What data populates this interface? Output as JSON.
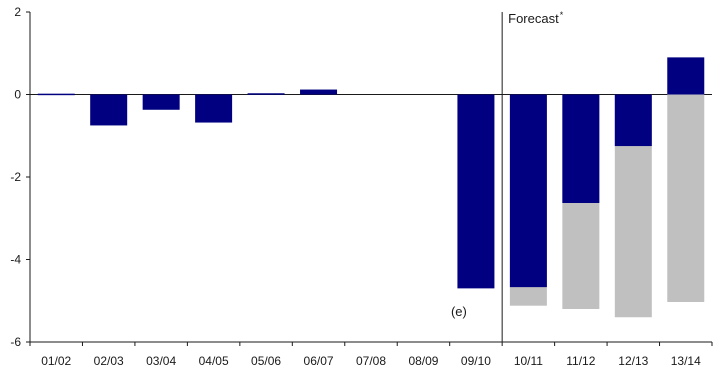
{
  "chart_data": {
    "type": "bar",
    "categories": [
      "01/02",
      "02/03",
      "03/04",
      "04/05",
      "05/06",
      "06/07",
      "07/08",
      "08/09",
      "09/10",
      "10/11",
      "11/12",
      "12/13",
      "13/14"
    ],
    "series": [
      {
        "values": [
          0.02,
          -0.75,
          -0.37,
          -0.68,
          0.03,
          0.12,
          null,
          null,
          -4.7,
          -4.67,
          -2.63,
          -1.25,
          0.9
        ],
        "color": "#000080"
      },
      {
        "values": [
          null,
          null,
          null,
          null,
          null,
          null,
          null,
          null,
          null,
          -5.12,
          -5.2,
          -5.4,
          -5.03
        ],
        "color": "#c0c0c0"
      }
    ],
    "ylim": [
      -6,
      2
    ],
    "yticks": [
      -6,
      -4,
      -2,
      0,
      2
    ],
    "ytick_labels": [
      "-6",
      "-4",
      "-2",
      "0",
      "2"
    ],
    "forecast_divider_after": "09/10",
    "forecast_label": "Forecast",
    "forecast_marker": "*",
    "annotations": [
      {
        "category": "09/10",
        "text": "(e)"
      }
    ]
  }
}
